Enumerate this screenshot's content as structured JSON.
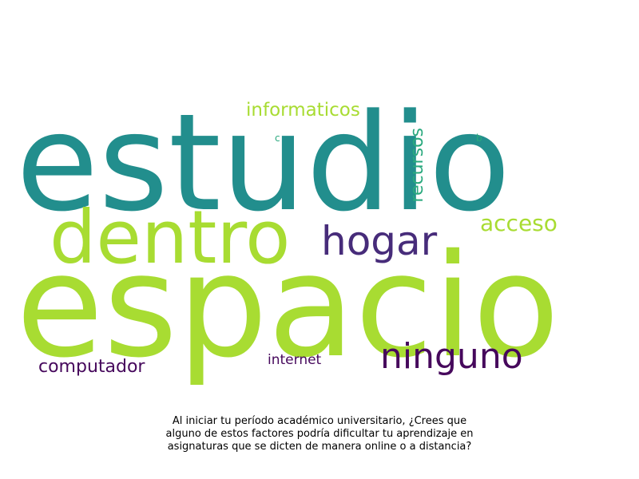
{
  "chart_data": {
    "type": "wordcloud",
    "words": [
      {
        "text": "estudio",
        "color": "#228e8d"
      },
      {
        "text": "espacio",
        "color": "#a8dc32"
      },
      {
        "text": "dentro",
        "color": "#a8dc32"
      },
      {
        "text": "hogar",
        "color": "#472c7a"
      },
      {
        "text": "ninguno",
        "color": "#46085c"
      },
      {
        "text": "informaticos",
        "color": "#a8dc32"
      },
      {
        "text": "acceso",
        "color": "#a8dc32"
      },
      {
        "text": "recursos",
        "color": "#2aa97e"
      },
      {
        "text": "computador",
        "color": "#46085c"
      },
      {
        "text": "internet",
        "color": "#46085c"
      },
      {
        "text": "c",
        "color": "#2aa97e"
      },
      {
        "text": "b",
        "color": "#2aa97e"
      }
    ],
    "caption_lines": [
      "Al iniciar tu período académico universitario, ¿Crees que",
      "alguno de estos factores podría dificultar tu aprendizaje en",
      "asignaturas que se dicten de manera online o a distancia?"
    ]
  }
}
